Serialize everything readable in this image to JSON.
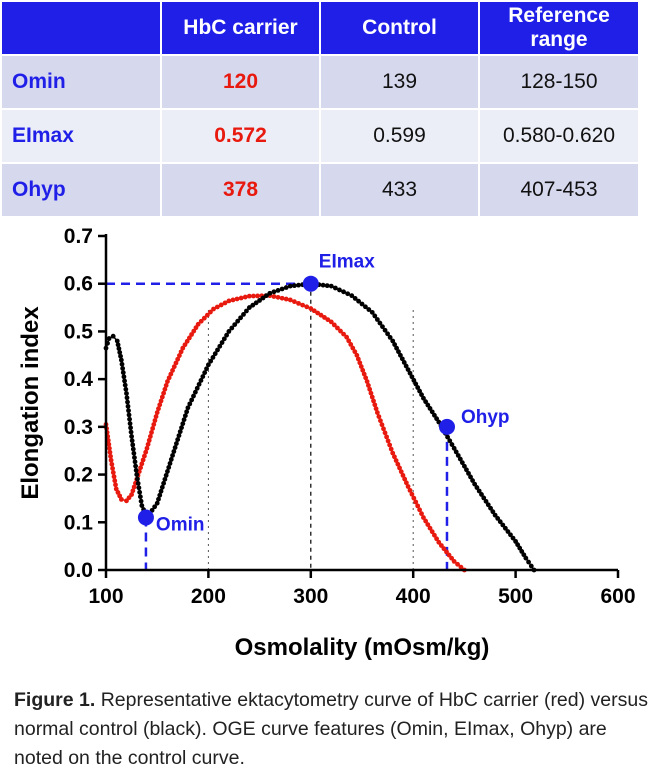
{
  "table": {
    "headers": [
      "",
      "HbC carrier",
      "Control",
      "Reference range"
    ],
    "rows": [
      {
        "label": "Omin",
        "carrier": "120",
        "control": "139",
        "range": "128-150"
      },
      {
        "label": "EImax",
        "carrier": "0.572",
        "control": "0.599",
        "range": "0.580-0.620"
      },
      {
        "label": "Ohyp",
        "carrier": "378",
        "control": "433",
        "range": "407-453"
      }
    ]
  },
  "caption": {
    "label": "Figure 1.",
    "text": "Representative ektacytometry curve of HbC carrier (red) versus normal control (black). OGE curve features (Omin, EImax, Ohyp) are noted on the control curve."
  },
  "colors": {
    "header_bg": "#1f1fe8",
    "carrier": "#e8190e",
    "control": "#000000",
    "marker": "#1f1fe8"
  },
  "chart_data": {
    "type": "scatter",
    "xlabel": "Osmolality (mOsm/kg)",
    "ylabel": "Elongation index",
    "xlim": [
      100,
      600
    ],
    "ylim": [
      0.0,
      0.7
    ],
    "xticks": [
      "100",
      "200",
      "300",
      "400",
      "500",
      "600"
    ],
    "yticks": [
      "0.0",
      "0.1",
      "0.2",
      "0.3",
      "0.4",
      "0.5",
      "0.6",
      "0.7"
    ],
    "grid": false,
    "series": [
      {
        "color": "#e8190e",
        "x": [
          100,
          105,
          110,
          115,
          120,
          125,
          130,
          140,
          150,
          160,
          175,
          190,
          205,
          220,
          240,
          260,
          280,
          300,
          320,
          335,
          345,
          355,
          365,
          380,
          395,
          410,
          425,
          440,
          450
        ],
        "y": [
          0.305,
          0.23,
          0.17,
          0.148,
          0.145,
          0.158,
          0.19,
          0.255,
          0.33,
          0.395,
          0.465,
          0.515,
          0.547,
          0.564,
          0.574,
          0.575,
          0.566,
          0.548,
          0.52,
          0.488,
          0.45,
          0.395,
          0.33,
          0.245,
          0.175,
          0.11,
          0.058,
          0.018,
          0.0
        ]
      },
      {
        "color": "#000000",
        "x": [
          100,
          103,
          107,
          111,
          115,
          120,
          125,
          130,
          135,
          140,
          150,
          165,
          180,
          200,
          220,
          240,
          260,
          280,
          300,
          320,
          340,
          360,
          380,
          395,
          410,
          425,
          440,
          460,
          480,
          500,
          510,
          518
        ],
        "y": [
          0.465,
          0.485,
          0.49,
          0.48,
          0.44,
          0.37,
          0.28,
          0.2,
          0.135,
          0.11,
          0.14,
          0.24,
          0.34,
          0.43,
          0.5,
          0.55,
          0.58,
          0.595,
          0.6,
          0.595,
          0.575,
          0.54,
          0.48,
          0.42,
          0.36,
          0.31,
          0.255,
          0.18,
          0.115,
          0.06,
          0.025,
          0.0
        ]
      }
    ],
    "annotations": [
      {
        "label": "EImax",
        "x": 300,
        "y": 0.6
      },
      {
        "label": "Ohyp",
        "x": 433,
        "y": 0.3
      },
      {
        "label": "Omin",
        "x": 139,
        "y": 0.11
      }
    ]
  }
}
